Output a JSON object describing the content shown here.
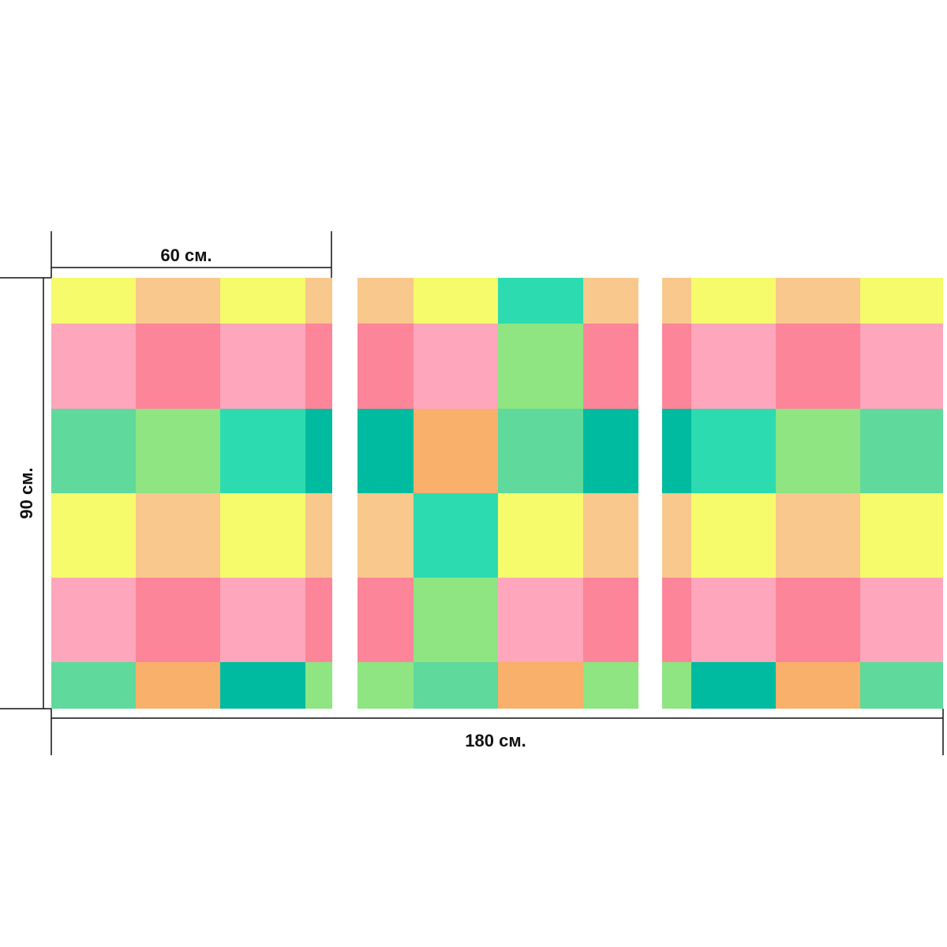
{
  "dimensions": {
    "panel_width": "60 см.",
    "height": "90 см.",
    "total_width": "180 см."
  }
}
